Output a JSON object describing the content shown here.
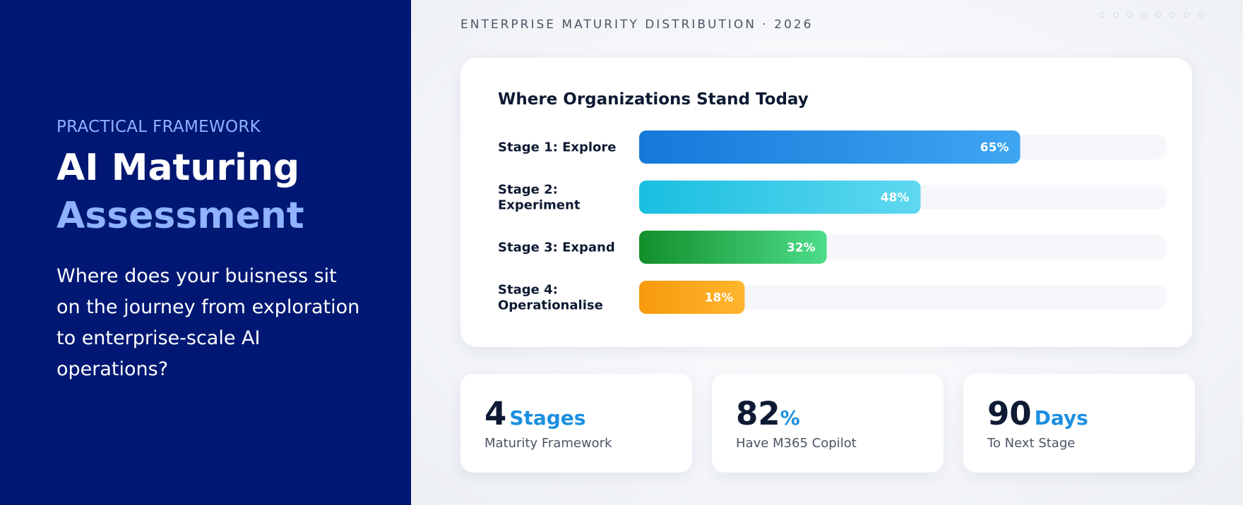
{
  "left": {
    "eyebrow": "PRACTICAL FRAMEWORK",
    "title_line1": "AI Maturing",
    "title_line2": "Assessment",
    "description": "Where does your buisness sit on the journey from exploration to enterprise-scale AI operations?"
  },
  "right": {
    "section_label": "ENTERPRISE MATURITY DISTRIBUTION · 2026"
  },
  "chart_data": {
    "type": "bar",
    "orientation": "horizontal",
    "title": "Where Organizations Stand Today",
    "categories": [
      [
        "Stage 1: Explore"
      ],
      [
        "Stage 2:",
        "Experiment"
      ],
      [
        "Stage 3: Expand"
      ],
      [
        "Stage 4:",
        "Operationalise"
      ]
    ],
    "values": [
      65,
      48,
      32,
      18
    ],
    "value_labels": [
      "65%",
      "48%",
      "32%",
      "18%"
    ],
    "value_unit": "%",
    "xlim": [
      0,
      100
    ],
    "bar_colors": [
      [
        "#1479d9",
        "#3ea6f2"
      ],
      [
        "#19bfe0",
        "#5fd8f0"
      ],
      [
        "#138f2a",
        "#4ddc8a"
      ],
      [
        "#f79a0e",
        "#ffb52e"
      ]
    ],
    "track_color": "#eef1f6",
    "grid": false,
    "legend": "none"
  },
  "stats": [
    {
      "number": "4",
      "unit": "Stages",
      "caption": "Maturity Framework"
    },
    {
      "number": "82",
      "unit": "%",
      "caption": "Have M365 Copilot"
    },
    {
      "number": "90",
      "unit": "Days",
      "caption": "To Next Stage"
    }
  ],
  "colors": {
    "left_background": "#001873",
    "accent_light": "#8fb3ff",
    "accent_blue": "#1b8fe0",
    "dark_text": "#0e1a33"
  }
}
